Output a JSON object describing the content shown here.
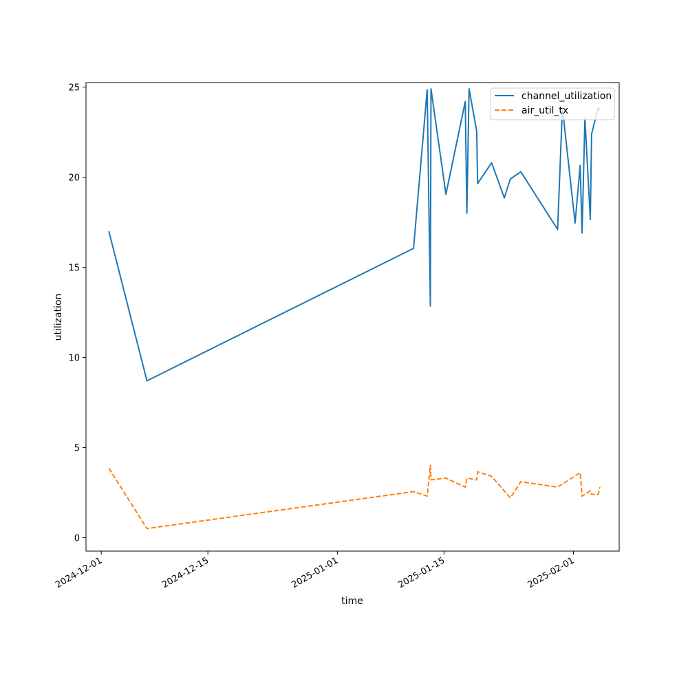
{
  "chart_data": {
    "type": "line",
    "xlabel": "time",
    "ylabel": "utilization",
    "xlim": [
      "2024-11-29",
      "2025-02-07"
    ],
    "ylim": [
      -0.75,
      25.25
    ],
    "x_ticks": [
      "2024-12-01",
      "2024-12-15",
      "2025-01-01",
      "2025-01-15",
      "2025-02-01"
    ],
    "y_ticks": [
      0,
      5,
      10,
      15,
      20,
      25
    ],
    "legend_position": "top-right",
    "grid": false,
    "series": [
      {
        "name": "channel_utilization",
        "color": "#1f77b4",
        "style": "solid",
        "points": [
          [
            "2024-12-02T00:00",
            17.0
          ],
          [
            "2024-12-07T00:00",
            8.7
          ],
          [
            "2025-01-11T00:00",
            16.05
          ],
          [
            "2025-01-12T19:00",
            24.85
          ],
          [
            "2025-01-13T05:00",
            12.85
          ],
          [
            "2025-01-13T07:00",
            24.9
          ],
          [
            "2025-01-15T06:00",
            19.05
          ],
          [
            "2025-01-17T19:00",
            24.2
          ],
          [
            "2025-01-18T00:00",
            18.0
          ],
          [
            "2025-01-18T07:00",
            24.9
          ],
          [
            "2025-01-19T07:00",
            22.55
          ],
          [
            "2025-01-19T10:00",
            19.65
          ],
          [
            "2025-01-21T06:00",
            20.8
          ],
          [
            "2025-01-22T22:00",
            18.85
          ],
          [
            "2025-01-23T17:00",
            19.9
          ],
          [
            "2025-01-25T02:00",
            20.3
          ],
          [
            "2025-01-29T22:00",
            17.1
          ],
          [
            "2025-01-30T13:00",
            23.85
          ],
          [
            "2025-02-01T05:00",
            17.45
          ],
          [
            "2025-02-01T21:00",
            20.65
          ],
          [
            "2025-02-02T03:00",
            16.9
          ],
          [
            "2025-02-02T12:00",
            23.3
          ],
          [
            "2025-02-03T05:00",
            17.65
          ],
          [
            "2025-02-03T09:00",
            22.4
          ],
          [
            "2025-02-04T06:00",
            23.85
          ],
          [
            "2025-02-04T11:00",
            23.7
          ]
        ]
      },
      {
        "name": "air_util_tx",
        "color": "#ff7f0e",
        "style": "dashed",
        "points": [
          [
            "2024-12-02T00:00",
            3.85
          ],
          [
            "2024-12-07T00:00",
            0.5
          ],
          [
            "2025-01-11T00:00",
            2.55
          ],
          [
            "2025-01-12T19:00",
            2.3
          ],
          [
            "2025-01-13T05:00",
            4.0
          ],
          [
            "2025-01-13T07:00",
            3.2
          ],
          [
            "2025-01-15T06:00",
            3.3
          ],
          [
            "2025-01-17T19:00",
            2.8
          ],
          [
            "2025-01-18T00:00",
            3.3
          ],
          [
            "2025-01-19T07:00",
            3.2
          ],
          [
            "2025-01-19T10:00",
            3.65
          ],
          [
            "2025-01-21T06:00",
            3.4
          ],
          [
            "2025-01-23T17:00",
            2.2
          ],
          [
            "2025-01-25T02:00",
            3.1
          ],
          [
            "2025-01-29T22:00",
            2.8
          ],
          [
            "2025-02-01T21:00",
            3.6
          ],
          [
            "2025-02-02T03:00",
            2.3
          ],
          [
            "2025-02-03T05:00",
            2.6
          ],
          [
            "2025-02-03T09:00",
            2.4
          ],
          [
            "2025-02-04T06:00",
            2.4
          ],
          [
            "2025-02-04T11:00",
            2.8
          ]
        ]
      }
    ]
  }
}
